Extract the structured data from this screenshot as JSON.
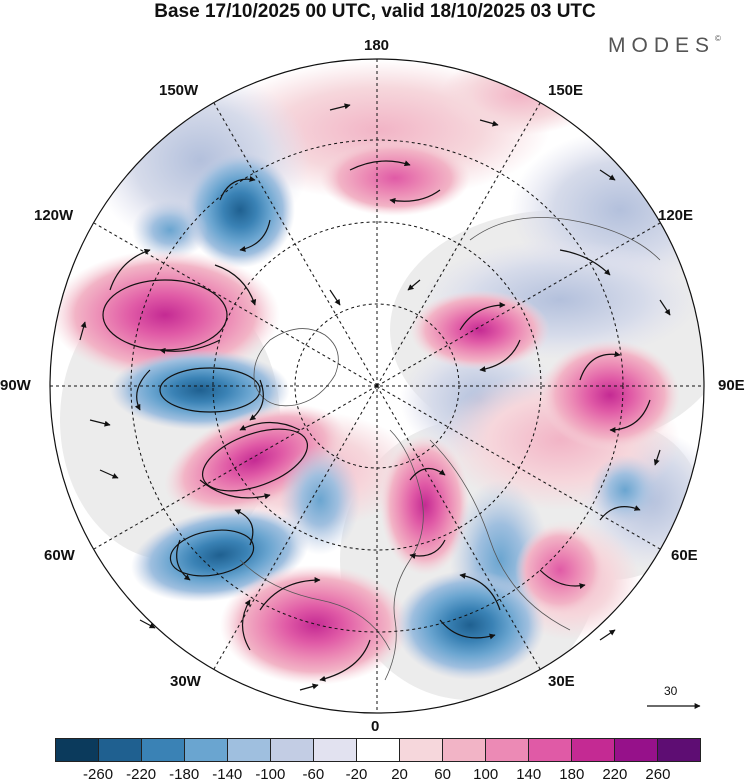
{
  "title": "Base 17/10/2025 00 UTC, valid 18/10/2025 03 UTC",
  "brand": {
    "name": "MODES",
    "mark": "©"
  },
  "map": {
    "projection": "north polar stereographic",
    "longitude_labels": {
      "top": "180",
      "top_right": "150E",
      "right_upper": "120E",
      "right": "90E",
      "right_lower": "60E",
      "bottom_right": "30E",
      "bottom": "0",
      "bottom_left": "30W",
      "left_lower": "60W",
      "left": "90W",
      "left_upper": "120W",
      "top_left": "150W"
    },
    "field_unit_note": "shaded anomaly field with wind vectors",
    "anomaly_centers": [
      {
        "sign": "positive",
        "value": 240,
        "lon": "110W"
      },
      {
        "sign": "negative",
        "value": -160,
        "lon": "140W"
      },
      {
        "sign": "negative",
        "value": -160,
        "lon": "90W"
      },
      {
        "sign": "positive",
        "value": 260,
        "lon": "65W"
      },
      {
        "sign": "negative",
        "value": -140,
        "lon": "55W"
      },
      {
        "sign": "negative",
        "value": -200,
        "lon": "50W"
      },
      {
        "sign": "positive",
        "value": 180,
        "lon": "10W"
      },
      {
        "sign": "negative",
        "value": -120,
        "lon": "20E"
      },
      {
        "sign": "positive",
        "value": 200,
        "lon": "15E"
      },
      {
        "sign": "positive",
        "value": 180,
        "lon": "105E"
      },
      {
        "sign": "positive",
        "value": 140,
        "lon": "160E"
      }
    ]
  },
  "vector_reference": {
    "label": "30"
  },
  "colorbar": {
    "colors": [
      "#0b3a5c",
      "#1f6090",
      "#3a82b5",
      "#6aa5d0",
      "#9fbfdf",
      "#c3cde4",
      "#e2e2f0",
      "#ffffff",
      "#f6d7dc",
      "#f2b4c6",
      "#ec8ab5",
      "#e05aa6",
      "#c42a93",
      "#96118a",
      "#5e0d73"
    ],
    "ticks": [
      "-260",
      "-220",
      "-180",
      "-140",
      "-100",
      "-60",
      "-20",
      "20",
      "60",
      "100",
      "140",
      "180",
      "220",
      "260"
    ]
  }
}
